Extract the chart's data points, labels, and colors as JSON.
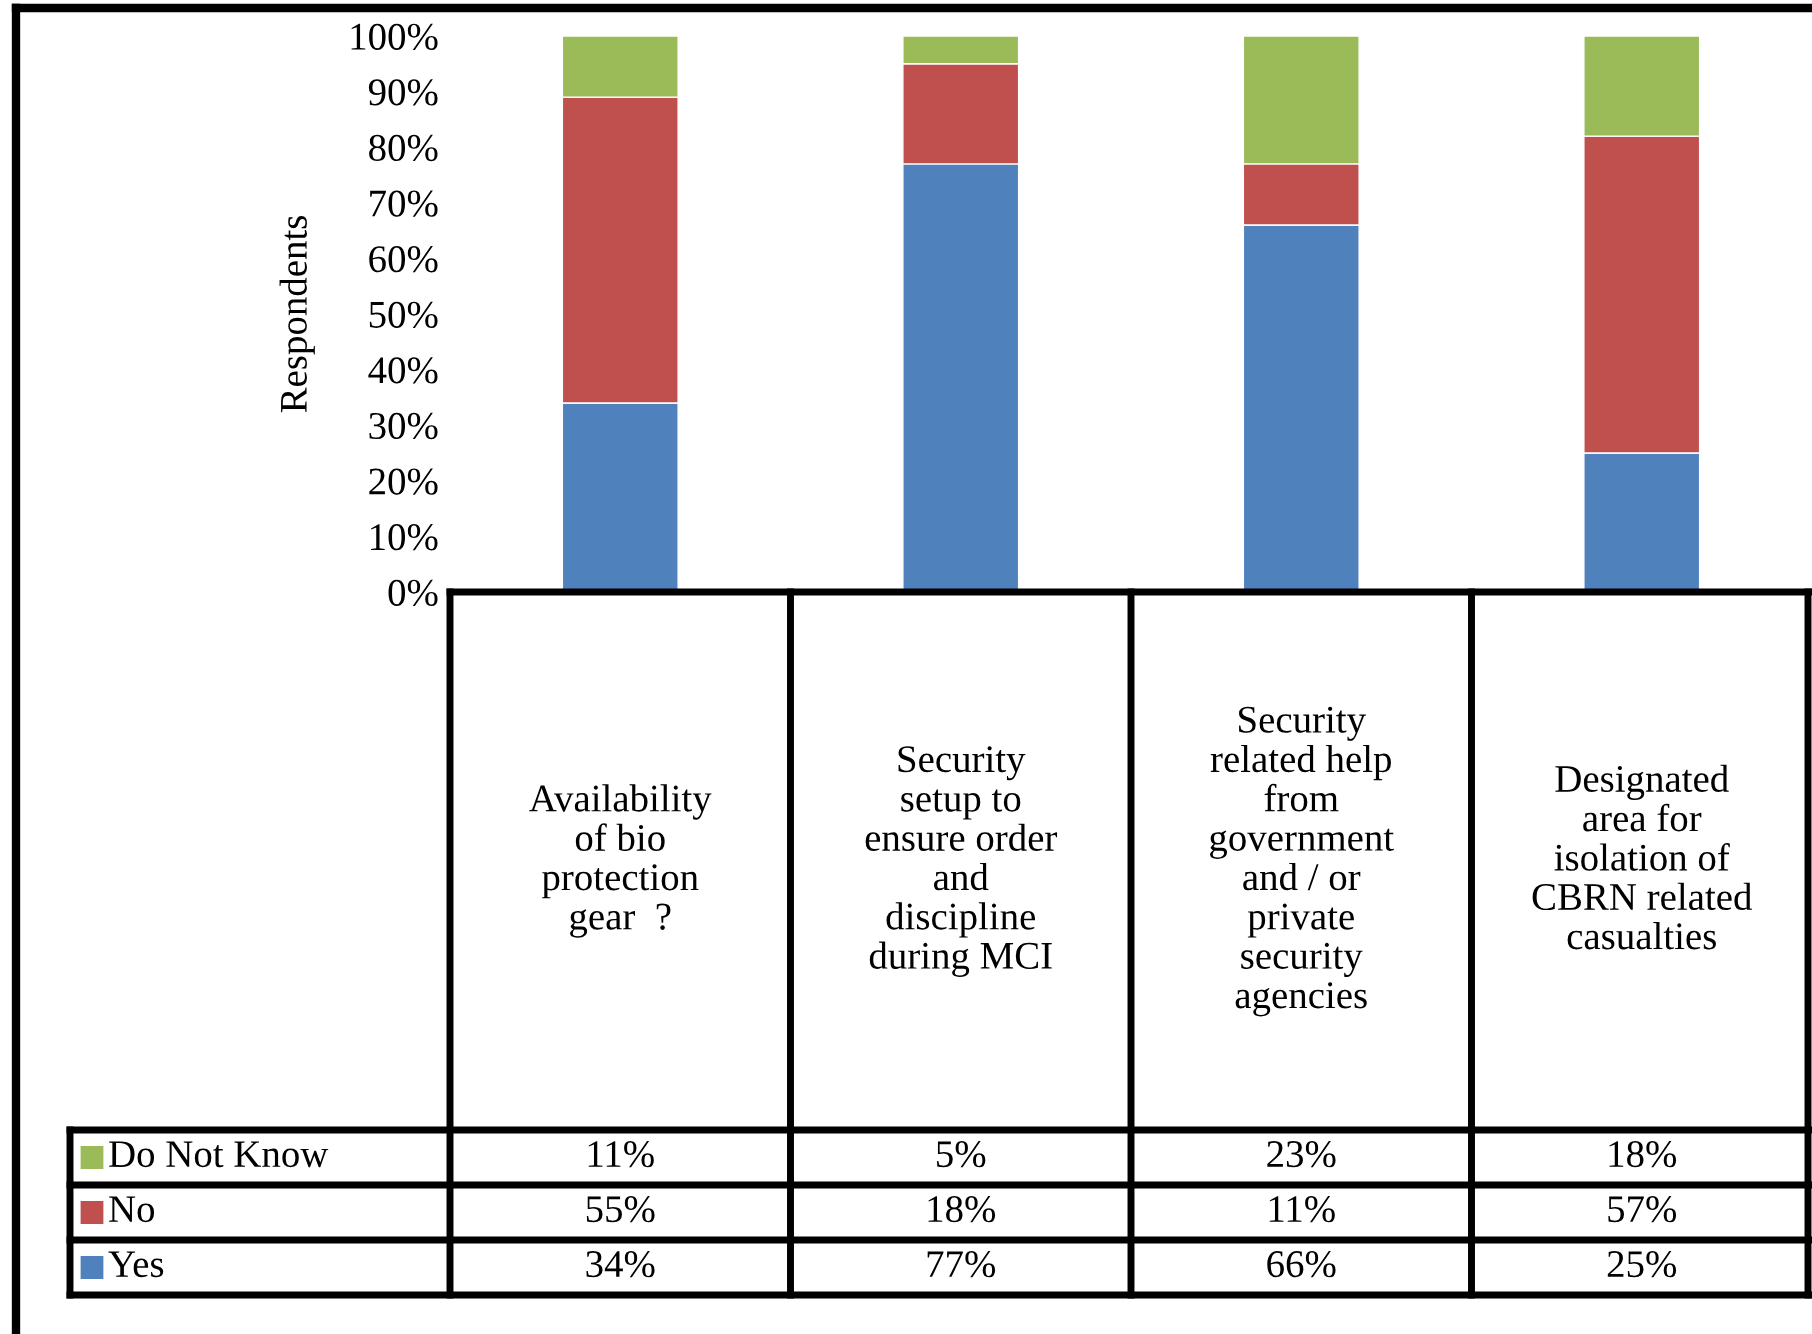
{
  "chart_data": {
    "type": "bar",
    "stacked": true,
    "ylabel": "Respondents",
    "categories": [
      "Availability of bio protection gear  ?",
      "Security setup to ensure order and discipline during MCI",
      "Security related help from government and / or private security agencies",
      "Designated area for isolation of CBRN related casualties"
    ],
    "series": [
      {
        "name": "Yes",
        "color": "#4f81bd",
        "values": [
          34,
          77,
          66,
          25
        ],
        "value_labels": [
          "34%",
          "77%",
          "66%",
          "25%"
        ]
      },
      {
        "name": "No",
        "color": "#c0504d",
        "values": [
          55,
          18,
          11,
          57
        ],
        "value_labels": [
          "55%",
          "18%",
          "11%",
          "57%"
        ]
      },
      {
        "name": "Do Not Know",
        "color": "#9bbb59",
        "values": [
          11,
          5,
          23,
          18
        ],
        "value_labels": [
          "11%",
          "5%",
          "23%",
          "18%"
        ]
      }
    ],
    "ylim": [
      0,
      100
    ],
    "yticks": [
      {
        "value": 0,
        "label": "0%"
      },
      {
        "value": 10,
        "label": "10%"
      },
      {
        "value": 20,
        "label": "20%"
      },
      {
        "value": 30,
        "label": "30%"
      },
      {
        "value": 40,
        "label": "40%"
      },
      {
        "value": 50,
        "label": "50%"
      },
      {
        "value": 60,
        "label": "60%"
      },
      {
        "value": 70,
        "label": "70%"
      },
      {
        "value": 80,
        "label": "80%"
      },
      {
        "value": 90,
        "label": "90%"
      },
      {
        "value": 100,
        "label": "100%"
      }
    ],
    "grid": false,
    "legend": "bottom"
  }
}
